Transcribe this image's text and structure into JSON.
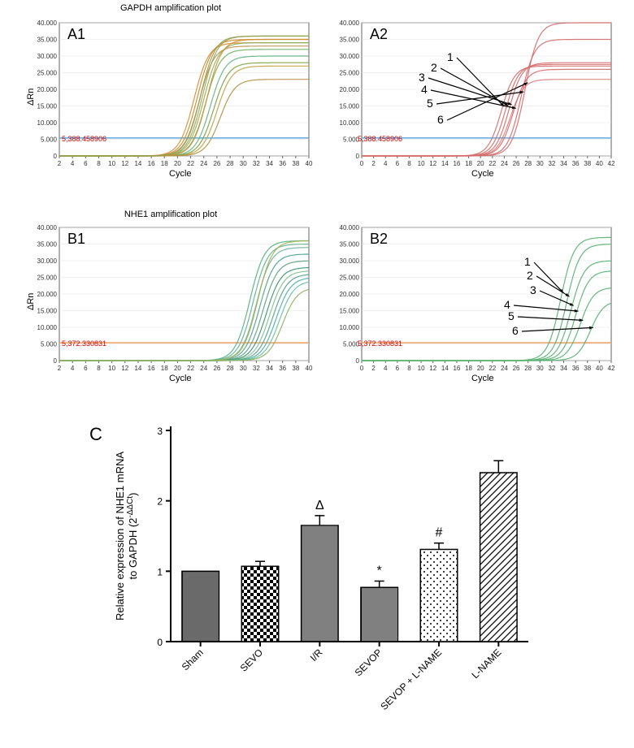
{
  "figure": {
    "background_color": "#ffffff"
  },
  "panelA1": {
    "title": "GAPDH amplification plot",
    "label": "A1",
    "axis_y_label": "ΔRn",
    "axis_x_label": "Cycle",
    "threshold_value": 5388.458906,
    "threshold_label": "5,388.458906",
    "threshold_color": "#5ea9e0",
    "xlim": [
      2,
      40
    ],
    "xtick_step": 2,
    "ylim": [
      0,
      40000
    ],
    "ytick_step": 5000,
    "grid_color": "#e0e0e0",
    "axis_color": "#666666",
    "label_fontsize": 11,
    "curve_colors": [
      "#d98c2e",
      "#c88a30",
      "#b89050",
      "#aaa050",
      "#8ab060",
      "#6db060",
      "#60b080",
      "#7aa040",
      "#c0a040",
      "#d09030",
      "#b09040",
      "#90a050"
    ],
    "curves": [
      {
        "ct": 19.5,
        "plateau": 34000
      },
      {
        "ct": 20.0,
        "plateau": 35000
      },
      {
        "ct": 20.3,
        "plateau": 33000
      },
      {
        "ct": 20.8,
        "plateau": 36000
      },
      {
        "ct": 21.0,
        "plateau": 34000
      },
      {
        "ct": 21.3,
        "plateau": 32000
      },
      {
        "ct": 22.0,
        "plateau": 30000
      },
      {
        "ct": 22.5,
        "plateau": 28000
      },
      {
        "ct": 23.0,
        "plateau": 27000
      },
      {
        "ct": 21.5,
        "plateau": 35000
      },
      {
        "ct": 23.5,
        "plateau": 23000
      },
      {
        "ct": 20.5,
        "plateau": 36000
      }
    ]
  },
  "panelA2": {
    "label": "A2",
    "axis_x_label": "Cycle",
    "threshold_value": 5388.458906,
    "threshold_label": "5,388.458906",
    "threshold_color": "#5ea9e0",
    "xlim": [
      0,
      42
    ],
    "xtick_step": 2,
    "ylim": [
      0,
      40000
    ],
    "ytick_step": 5000,
    "grid_color": "#e0e0e0",
    "axis_color": "#666666",
    "curve_color_base": "#d46a6a",
    "curve_labels": [
      "1",
      "2",
      "3",
      "4",
      "5",
      "6"
    ],
    "curves": [
      {
        "ct": 20.5,
        "plateau": 27000
      },
      {
        "ct": 21.2,
        "plateau": 27500
      },
      {
        "ct": 21.8,
        "plateau": 28000
      },
      {
        "ct": 22.5,
        "plateau": 26000
      },
      {
        "ct": 23.8,
        "plateau": 35000
      },
      {
        "ct": 24.5,
        "plateau": 40000
      }
    ],
    "extra_curves": [
      {
        "ct": 22.0,
        "plateau": 23000
      }
    ]
  },
  "panelB1": {
    "title": "NHE1 amplification plot",
    "label": "B1",
    "axis_y_label": "ΔRn",
    "axis_x_label": "Cycle",
    "threshold_value": 5372.330831,
    "threshold_label": "5,372.330831",
    "threshold_color": "#f0a060",
    "xlim": [
      2,
      40
    ],
    "xtick_step": 2,
    "ylim": [
      0,
      40000
    ],
    "ytick_step": 5000,
    "grid_color": "#e0e0e0",
    "axis_color": "#666666",
    "curve_colors": [
      "#50b080",
      "#60b090",
      "#70b0a0",
      "#4aa090",
      "#5aa080",
      "#3a9070",
      "#80c090",
      "#55a085",
      "#4ab0a0",
      "#60c0a0",
      "#90b060",
      "#a0b050"
    ],
    "curves": [
      {
        "ct": 28.0,
        "plateau": 36000
      },
      {
        "ct": 28.5,
        "plateau": 35000
      },
      {
        "ct": 29.0,
        "plateau": 34000
      },
      {
        "ct": 29.5,
        "plateau": 32000
      },
      {
        "ct": 30.0,
        "plateau": 30000
      },
      {
        "ct": 30.5,
        "plateau": 28000
      },
      {
        "ct": 31.0,
        "plateau": 27000
      },
      {
        "ct": 31.5,
        "plateau": 26000
      },
      {
        "ct": 32.0,
        "plateau": 25000
      },
      {
        "ct": 32.5,
        "plateau": 24000
      },
      {
        "ct": 33.0,
        "plateau": 22000
      },
      {
        "ct": 29.2,
        "plateau": 36000
      }
    ]
  },
  "panelB2": {
    "label": "B2",
    "axis_x_label": "Cycle",
    "threshold_value": 5372.330831,
    "threshold_label": "5,372.330831",
    "threshold_color": "#f0a060",
    "xlim": [
      0,
      42
    ],
    "xtick_step": 2,
    "ylim": [
      0,
      40000
    ],
    "ytick_step": 5000,
    "grid_color": "#e0e0e0",
    "axis_color": "#666666",
    "curve_color_base": "#55b070",
    "curve_labels": [
      "1",
      "2",
      "3",
      "4",
      "5",
      "6"
    ],
    "curves": [
      {
        "ct": 30.5,
        "plateau": 37000
      },
      {
        "ct": 31.5,
        "plateau": 35000
      },
      {
        "ct": 32.2,
        "plateau": 30000
      },
      {
        "ct": 33.0,
        "plateau": 27000
      },
      {
        "ct": 33.8,
        "plateau": 22000
      },
      {
        "ct": 35.5,
        "plateau": 18000
      }
    ]
  },
  "panelC": {
    "label": "C",
    "type": "bar",
    "y_label_line1": "Relative expression of NHE1 mRNA",
    "y_label_line2": "to GAPDH (2^-ΔΔCt)",
    "categories": [
      "Sham",
      "SEVO",
      "I/R",
      "SEVOP",
      "SEVOP + L-NAME",
      "L-NAME"
    ],
    "values": [
      1.0,
      1.07,
      1.65,
      0.77,
      1.31,
      2.4
    ],
    "errors": [
      0.0,
      0.07,
      0.14,
      0.09,
      0.09,
      0.17
    ],
    "annotations": [
      "",
      "",
      "Δ",
      "*",
      "#",
      ""
    ],
    "ylim": [
      0,
      3
    ],
    "ytick_step": 1,
    "bar_width": 0.62,
    "bar_border_color": "#000000",
    "bar_border_width": 1.5,
    "label_fontsize": 13,
    "tick_fontsize": 12,
    "annotation_fontsize": 16,
    "patterns": [
      "dots-dense",
      "checker",
      "hlines",
      "vlines",
      "dots-sparse",
      "diag"
    ]
  }
}
